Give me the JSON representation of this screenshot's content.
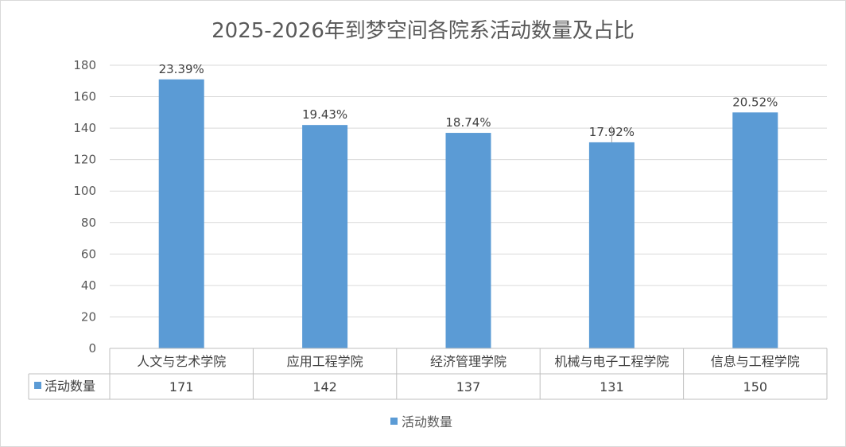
{
  "chart_data": {
    "type": "bar",
    "title": "2025-2026年到梦空间各院系活动数量及占比",
    "categories": [
      "人文与艺术学院",
      "应用工程学院",
      "经济管理学院",
      "机械与电子工程学院",
      "信息与工程学院"
    ],
    "series": [
      {
        "name": "活动数量",
        "values": [
          171,
          142,
          137,
          131,
          150
        ],
        "labels": [
          "23.39%",
          "19.43%",
          "18.74%",
          "17.92%",
          "20.52%"
        ],
        "color": "#5b9bd5"
      }
    ],
    "ylim": [
      0,
      180
    ],
    "yticks": [
      0,
      20,
      40,
      60,
      80,
      100,
      120,
      140,
      160,
      180
    ],
    "grid": true,
    "legend": "bottom",
    "data_table": true
  }
}
